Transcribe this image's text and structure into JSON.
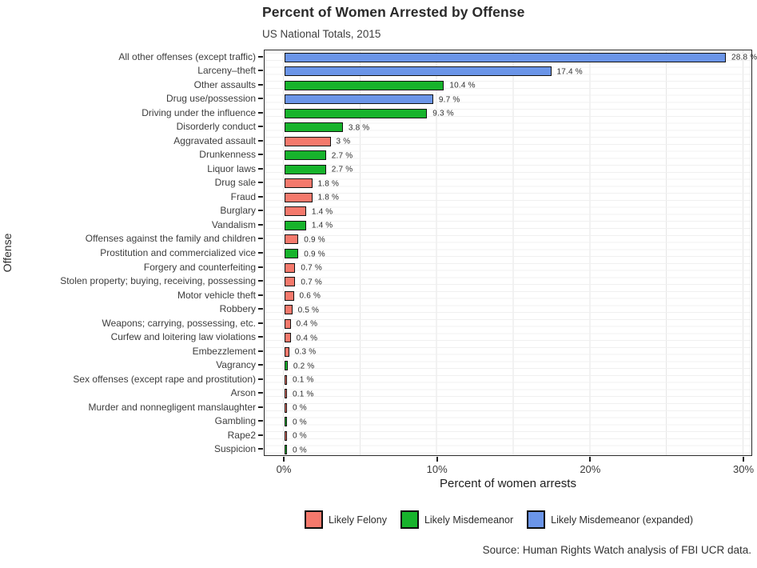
{
  "title": "Percent of Women Arrested by Offense",
  "subtitle": "US National Totals, 2015",
  "caption": "Source: Human Rights Watch analysis of FBI UCR data.",
  "axes": {
    "x_label": "Percent of women arrests",
    "y_label": "Offense",
    "x_ticks": [
      "0%",
      "10%",
      "20%",
      "30%"
    ],
    "x_tick_values": [
      0,
      10,
      20,
      30
    ]
  },
  "legend": {
    "position": "bottom",
    "items": [
      {
        "key": "felony",
        "label": "Likely Felony",
        "color": "#f4796c"
      },
      {
        "key": "misdemeanor",
        "label": "Likely Misdemeanor",
        "color": "#17b32c"
      },
      {
        "key": "expanded",
        "label": "Likely Misdemeanor (expanded)",
        "color": "#6b95e8"
      }
    ]
  },
  "chart_data": {
    "type": "bar",
    "orientation": "horizontal",
    "title": "Percent of Women Arrested by Offense",
    "subtitle": "US National Totals, 2015",
    "xlabel": "Percent of women arrests",
    "ylabel": "Offense",
    "xlim": [
      0,
      30
    ],
    "grid": true,
    "legend_position": "bottom",
    "categories": [
      "All other offenses (except traffic)",
      "Larceny–theft",
      "Other assaults",
      "Drug use/possession",
      "Driving under the influence",
      "Disorderly conduct",
      "Aggravated assault",
      "Drunkenness",
      "Liquor laws",
      "Drug sale",
      "Fraud",
      "Burglary",
      "Vandalism",
      "Offenses against the family and children",
      "Prostitution and commercialized vice",
      "Forgery and counterfeiting",
      "Stolen property; buying, receiving, possessing",
      "Motor vehicle theft",
      "Robbery",
      "Weapons; carrying, possessing, etc.",
      "Curfew and loitering law violations",
      "Embezzlement",
      "Vagrancy",
      "Sex offenses (except rape and prostitution)",
      "Arson",
      "Murder and nonnegligent manslaughter",
      "Gambling",
      "Rape2",
      "Suspicion"
    ],
    "values": [
      28.8,
      17.4,
      10.4,
      9.7,
      9.3,
      3.8,
      3,
      2.7,
      2.7,
      1.8,
      1.8,
      1.4,
      1.4,
      0.9,
      0.9,
      0.7,
      0.7,
      0.6,
      0.5,
      0.4,
      0.4,
      0.3,
      0.2,
      0.1,
      0.1,
      0,
      0,
      0,
      0
    ],
    "value_labels": [
      "28.8 %",
      "17.4 %",
      "10.4 %",
      "9.7 %",
      "9.3 %",
      "3.8 %",
      "3 %",
      "2.7 %",
      "2.7 %",
      "1.8 %",
      "1.8 %",
      "1.4 %",
      "1.4 %",
      "0.9 %",
      "0.9 %",
      "0.7 %",
      "0.7 %",
      "0.6 %",
      "0.5 %",
      "0.4 %",
      "0.4 %",
      "0.3 %",
      "0.2 %",
      "0.1 %",
      "0.1 %",
      "0 %",
      "0 %",
      "0 %",
      "0 %"
    ],
    "groups": [
      "expanded",
      "expanded",
      "misdemeanor",
      "expanded",
      "misdemeanor",
      "misdemeanor",
      "felony",
      "misdemeanor",
      "misdemeanor",
      "felony",
      "felony",
      "felony",
      "misdemeanor",
      "felony",
      "misdemeanor",
      "felony",
      "felony",
      "felony",
      "felony",
      "felony",
      "felony",
      "felony",
      "misdemeanor",
      "felony",
      "felony",
      "felony",
      "misdemeanor",
      "felony",
      "misdemeanor"
    ],
    "group_colors": {
      "felony": "#f4796c",
      "misdemeanor": "#17b32c",
      "expanded": "#6b95e8"
    }
  }
}
